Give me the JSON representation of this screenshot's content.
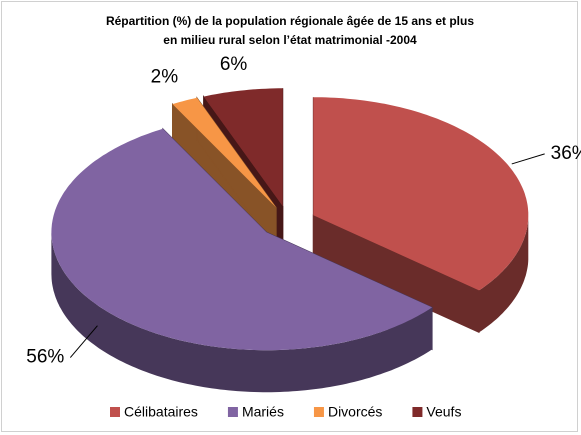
{
  "chart_data": {
    "type": "pie3d",
    "title": [
      "Répartition (%) de la population régionale âgée de 15 ans et plus",
      "en milieu rural selon l’état matrimonial -2004"
    ],
    "categories": [
      "Célibataires",
      "Mariés",
      "Divorcés",
      "Veufs"
    ],
    "values": [
      36,
      56,
      2,
      6
    ],
    "value_labels": [
      "36%",
      "56%",
      "2%",
      "6%"
    ],
    "colors": [
      "#c0504d",
      "#8064a2",
      "#f79646",
      "#7f2a2a"
    ],
    "legend": "bottom"
  }
}
